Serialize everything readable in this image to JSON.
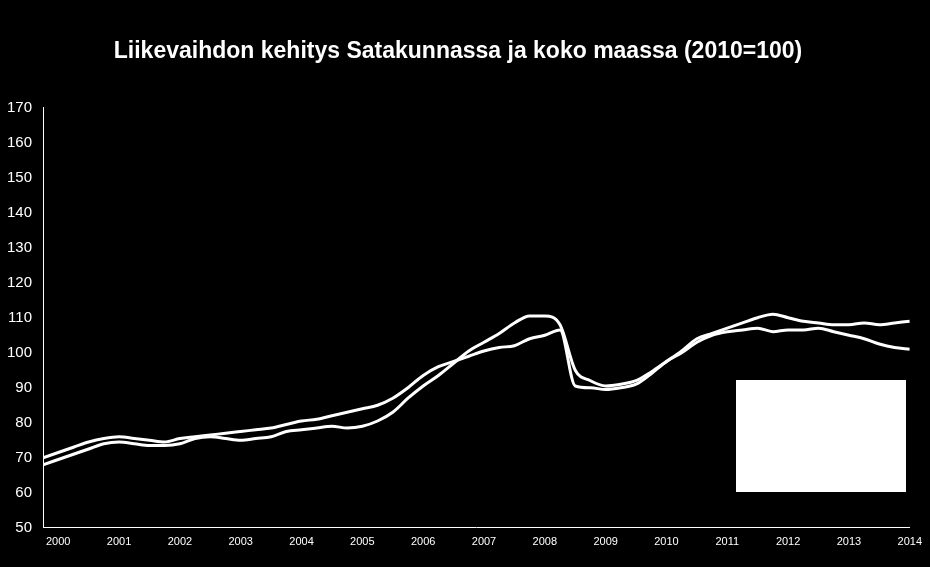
{
  "chart_data": {
    "type": "line",
    "title": "Liikevaihdon kehitys Satakunnassa ja koko maassa (2010=100)",
    "categories": [
      null,
      "2000",
      null,
      null,
      null,
      "2001",
      null,
      null,
      null,
      "2002",
      null,
      null,
      null,
      "2003",
      null,
      null,
      null,
      "2004",
      null,
      null,
      null,
      "2005",
      null,
      null,
      null,
      "2006",
      null,
      null,
      null,
      "2007",
      null,
      null,
      null,
      "2008",
      null,
      null,
      null,
      "2009",
      null,
      null,
      null,
      "2010",
      null,
      null,
      null,
      "2011",
      null,
      null,
      null,
      "2012",
      null,
      null,
      null,
      "2013",
      null,
      null,
      null,
      "2014"
    ],
    "series": [
      {
        "color": "#ffffff",
        "values": [
          70,
          71.5,
          73,
          74.5,
          75.5,
          76,
          75.5,
          75,
          74.5,
          75.5,
          76,
          76.5,
          77,
          77.5,
          78,
          78.5,
          79.5,
          80.5,
          81,
          82,
          83,
          84,
          85,
          87,
          90,
          93.5,
          96,
          97.5,
          99,
          100.5,
          101.5,
          102,
          104,
          105,
          106.5,
          90.5,
          90,
          89.5,
          90,
          91,
          94,
          97.5,
          100,
          103,
          105,
          106,
          106.5,
          107,
          106,
          106.5,
          106.5,
          107,
          106,
          105,
          104,
          102.5,
          101.5,
          101
        ]
      },
      {
        "color": "#ffffff",
        "values": [
          68,
          69.5,
          71,
          72.5,
          74,
          74.5,
          74,
          73.5,
          73.5,
          74,
          75.5,
          76,
          75.5,
          75,
          75.5,
          76,
          77.5,
          78,
          78.5,
          79,
          78.5,
          79,
          80.5,
          83,
          87,
          90.5,
          93.5,
          97,
          100.5,
          103,
          105.5,
          108.5,
          110.5,
          110.5,
          108,
          95,
          92,
          90.5,
          91,
          92,
          94.5,
          97.5,
          100.5,
          104,
          105.5,
          107,
          108.5,
          110,
          111,
          110,
          109,
          108.5,
          108,
          108,
          108.5,
          108,
          108.5,
          109
        ]
      }
    ],
    "ylim": [
      50,
      170
    ],
    "yticks": [
      50,
      60,
      70,
      80,
      90,
      100,
      110,
      120,
      130,
      140,
      150,
      160,
      170
    ],
    "grid": false
  }
}
